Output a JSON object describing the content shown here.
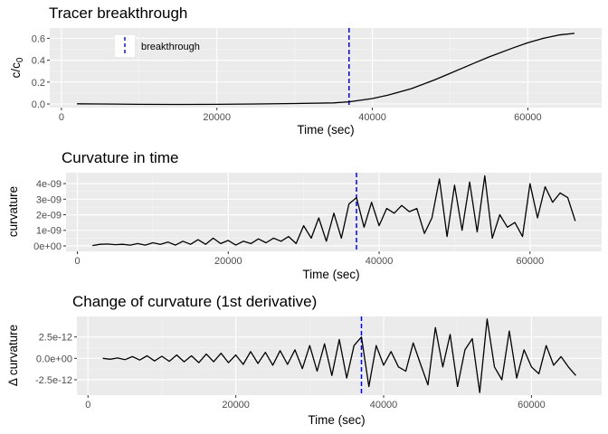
{
  "colors": {
    "panel_background": "#ebebeb",
    "grid_major": "#ffffff",
    "grid_minor": "#f5f5f5",
    "line": "#000000",
    "breakthrough_line": "#0000ff"
  },
  "chart_data": [
    {
      "type": "line",
      "title": "Tracer breakthrough",
      "xlabel": "Time (sec)",
      "ylabel": "c/c0",
      "xlim": [
        -1500,
        69500
      ],
      "ylim": [
        -0.033,
        0.694
      ],
      "xticks": [
        0,
        20000,
        40000,
        60000
      ],
      "xtick_labels": [
        "0",
        "20000",
        "40000",
        "60000"
      ],
      "yticks": [
        0.0,
        0.2,
        0.4,
        0.6
      ],
      "ytick_labels": [
        "0.0",
        "0.2",
        "0.4",
        "0.6"
      ],
      "grid": true,
      "legend": {
        "position": "top-left",
        "entries": [
          {
            "label": "breakthrough",
            "style": "blue dashed vertical line"
          }
        ]
      },
      "vline": {
        "x": 37000,
        "style": "dashed",
        "color": "#0000ff"
      },
      "x": [
        2000,
        5000,
        10000,
        15000,
        20000,
        25000,
        30000,
        35000,
        37000,
        40000,
        42000,
        45000,
        48000,
        50000,
        53000,
        55000,
        58000,
        60000,
        62000,
        64000,
        66000
      ],
      "y": [
        0.002,
        0.0,
        -0.003,
        -0.004,
        -0.003,
        0.0,
        0.004,
        0.01,
        0.02,
        0.05,
        0.08,
        0.14,
        0.22,
        0.28,
        0.37,
        0.43,
        0.51,
        0.56,
        0.6,
        0.63,
        0.645
      ]
    },
    {
      "type": "line",
      "title": "Curvature in time",
      "xlabel": "Time (sec)",
      "ylabel": "curvature",
      "xlim": [
        -1500,
        69500
      ],
      "ylim": [
        -3.5e-10,
        4.7e-09
      ],
      "xticks": [
        0,
        20000,
        40000,
        60000
      ],
      "xtick_labels": [
        "0",
        "20000",
        "40000",
        "60000"
      ],
      "yticks": [
        0,
        1e-09,
        2e-09,
        3e-09,
        4e-09
      ],
      "ytick_labels": [
        "0e+00",
        "1e-09",
        "2e-09",
        "3e-09",
        "4e-09"
      ],
      "grid": true,
      "vline": {
        "x": 37000,
        "style": "dashed",
        "color": "#0000ff"
      },
      "x": [
        2000,
        3000,
        4000,
        5000,
        6000,
        7000,
        8000,
        9000,
        10000,
        11000,
        12000,
        13000,
        14000,
        15000,
        16000,
        17000,
        18000,
        19000,
        20000,
        21000,
        22000,
        23000,
        24000,
        25000,
        26000,
        27000,
        28000,
        29000,
        30000,
        31000,
        32000,
        33000,
        34000,
        35000,
        36000,
        37000,
        38000,
        39000,
        40000,
        41000,
        42000,
        43000,
        44000,
        45000,
        46000,
        47000,
        48000,
        49000,
        50000,
        51000,
        52000,
        53000,
        54000,
        55000,
        56000,
        57000,
        58000,
        59000,
        60000,
        61000,
        62000,
        63000,
        64000,
        65000,
        66000
      ],
      "y": [
        2e-11,
        1e-10,
        1.2e-10,
        8e-11,
        1e-10,
        5e-11,
        1.5e-10,
        5e-11,
        2e-10,
        1e-10,
        2.5e-10,
        5e-11,
        3e-10,
        1e-10,
        4e-10,
        1e-10,
        5e-10,
        1.5e-10,
        3.5e-10,
        5e-11,
        3e-10,
        1.5e-10,
        4.5e-10,
        2e-10,
        5e-10,
        3e-10,
        6e-10,
        1.5e-10,
        1.3e-09,
        5e-10,
        1.8e-09,
        3e-10,
        2.1e-09,
        5e-10,
        2.7e-09,
        3.1e-09,
        1.2e-09,
        2.8e-09,
        1.3e-09,
        2.4e-09,
        2.1e-09,
        2.6e-09,
        2.2e-09,
        2.4e-09,
        8e-10,
        1.8e-09,
        4.3e-09,
        6e-10,
        3.9e-09,
        1e-09,
        4.1e-09,
        9e-10,
        4.5e-09,
        5e-10,
        2e-09,
        1.2e-09,
        1.5e-09,
        6e-10,
        4e-09,
        1.8e-09,
        3.8e-09,
        2.8e-09,
        3.4e-09,
        3.1e-09,
        1.6e-09
      ]
    },
    {
      "type": "line",
      "title": "Change of curvature (1st derivative)",
      "xlabel": "Time (sec)",
      "ylabel": "Δ curvature",
      "xlim": [
        -1500,
        69500
      ],
      "ylim": [
        -4.3e-12,
        4.9e-12
      ],
      "xticks": [
        0,
        20000,
        40000,
        60000
      ],
      "xtick_labels": [
        "0",
        "20000",
        "40000",
        "60000"
      ],
      "yticks": [
        -2.5e-12,
        0,
        2.5e-12
      ],
      "ytick_labels": [
        "-2.5e-12",
        "0.0e+00",
        "2.5e-12"
      ],
      "grid": true,
      "vline": {
        "x": 37000,
        "style": "dashed",
        "color": "#0000ff"
      },
      "x": [
        2000,
        3000,
        4000,
        5000,
        6000,
        7000,
        8000,
        9000,
        10000,
        11000,
        12000,
        13000,
        14000,
        15000,
        16000,
        17000,
        18000,
        19000,
        20000,
        21000,
        22000,
        23000,
        24000,
        25000,
        26000,
        27000,
        28000,
        29000,
        30000,
        31000,
        32000,
        33000,
        34000,
        35000,
        36000,
        37000,
        38000,
        39000,
        40000,
        41000,
        42000,
        43000,
        44000,
        45000,
        46000,
        47000,
        48000,
        49000,
        50000,
        51000,
        52000,
        53000,
        54000,
        55000,
        56000,
        57000,
        58000,
        59000,
        60000,
        61000,
        62000,
        63000,
        64000,
        65000,
        66000
      ],
      "y": [
        0.0,
        -1e-13,
        5e-14,
        -1.5e-13,
        2e-13,
        -2e-13,
        3e-13,
        -3e-13,
        2.5e-13,
        -3.5e-13,
        4e-13,
        -4e-13,
        3e-13,
        -5e-13,
        5e-13,
        -4e-13,
        6e-13,
        -5e-13,
        4e-13,
        -7e-13,
        8e-13,
        -6e-13,
        7e-13,
        -8e-13,
        9e-13,
        -7e-13,
        1e-12,
        -1.2e-12,
        1.5e-12,
        -1.5e-12,
        1.7e-12,
        -2e-12,
        2.2e-12,
        -2.3e-12,
        1.5e-12,
        2.5e-12,
        -3.3e-12,
        1.5e-12,
        -8e-13,
        8e-13,
        -1e-12,
        -1.5e-12,
        1.8e-12,
        -7e-13,
        -3.1e-12,
        3.6e-12,
        -1e-12,
        2.8e-12,
        -3.3e-12,
        1e-12,
        2.3e-12,
        -4e-12,
        4.6e-12,
        -1e-12,
        -2.5e-12,
        3.2e-12,
        -2.3e-12,
        1e-12,
        -1e-12,
        -1.8e-12,
        1.5e-12,
        -8e-13,
        2e-13,
        -1e-12,
        -2e-12
      ]
    }
  ]
}
